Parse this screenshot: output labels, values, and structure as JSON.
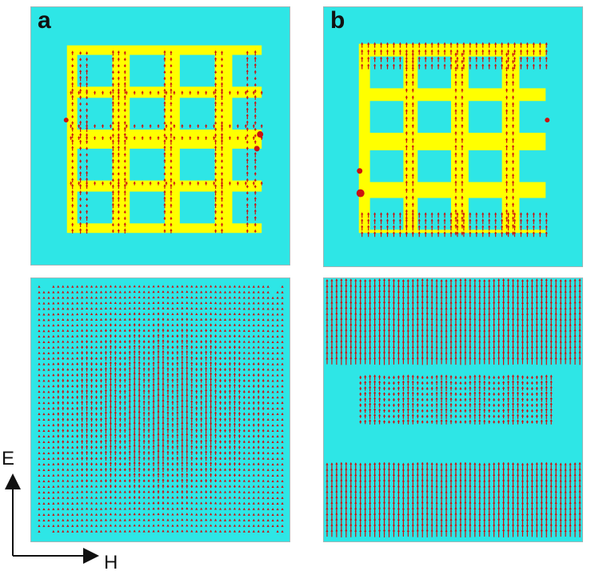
{
  "panels": {
    "a_label": "a",
    "b_label": "b"
  },
  "axes": {
    "e_label": "E",
    "h_label": "H"
  },
  "colors": {
    "background": "#2ee6e6",
    "metal": "#ffff00",
    "arrow": "#cc1111"
  }
}
